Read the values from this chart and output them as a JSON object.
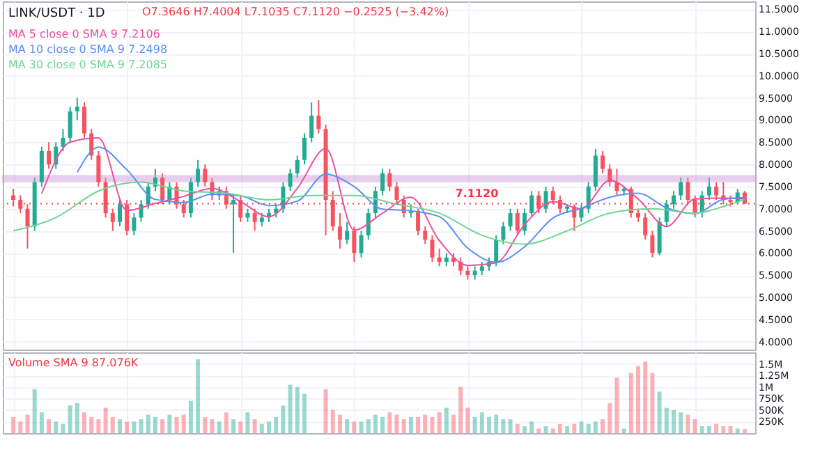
{
  "chart_data": [
    {
      "type": "candlestick",
      "title": "LINK/USDT · 1D",
      "annotations": [
        "O7.3646 H7.4004 L7.1035 C7.1120 −0.2525 (−3.42%)"
      ],
      "categories": [
        null,
        null,
        null,
        null,
        null,
        null,
        null,
        null,
        null,
        null,
        null,
        null,
        null,
        null,
        null,
        null,
        null,
        null,
        null,
        null,
        null,
        null,
        null,
        null,
        null,
        null,
        null,
        null,
        null,
        null,
        null,
        null,
        null,
        null,
        null,
        null,
        null,
        null,
        null,
        null,
        null,
        null,
        null,
        null,
        null,
        null,
        null,
        null,
        null,
        null,
        null,
        null,
        null,
        null,
        null,
        null,
        null,
        null,
        null,
        null,
        null,
        null,
        null,
        null,
        null,
        null,
        null,
        null,
        null,
        null,
        null,
        null,
        null,
        null,
        null,
        null,
        null,
        null,
        null,
        null,
        null,
        null,
        null,
        null,
        null,
        null,
        null,
        null,
        null,
        null,
        null,
        null,
        null,
        null,
        null,
        null,
        null,
        null,
        null,
        null,
        null,
        null,
        null,
        null
      ],
      "ohlc": [
        [
          7.3,
          7.45,
          7.05,
          7.2
        ],
        [
          7.2,
          7.3,
          6.9,
          7.0
        ],
        [
          7.0,
          7.1,
          6.1,
          6.6
        ],
        [
          6.6,
          7.7,
          6.5,
          7.6
        ],
        [
          7.6,
          8.4,
          7.5,
          8.3
        ],
        [
          8.3,
          8.5,
          7.9,
          8.0
        ],
        [
          8.0,
          8.5,
          7.9,
          8.4
        ],
        [
          8.4,
          8.8,
          8.3,
          8.6
        ],
        [
          8.6,
          9.3,
          8.5,
          9.2
        ],
        [
          9.2,
          9.5,
          9.0,
          9.3
        ],
        [
          9.3,
          9.4,
          8.6,
          8.7
        ],
        [
          8.7,
          8.8,
          8.1,
          8.2
        ],
        [
          8.2,
          8.3,
          7.5,
          7.6
        ],
        [
          7.6,
          7.7,
          6.8,
          6.9
        ],
        [
          6.9,
          7.0,
          6.5,
          6.7
        ],
        [
          6.7,
          7.2,
          6.6,
          7.1
        ],
        [
          7.1,
          7.2,
          6.4,
          6.5
        ],
        [
          6.5,
          6.9,
          6.4,
          6.8
        ],
        [
          6.8,
          7.2,
          6.7,
          7.1
        ],
        [
          7.1,
          7.6,
          7.0,
          7.5
        ],
        [
          7.5,
          7.9,
          7.4,
          7.7
        ],
        [
          7.7,
          7.8,
          7.1,
          7.2
        ],
        [
          7.2,
          7.6,
          7.1,
          7.5
        ],
        [
          7.5,
          7.6,
          7.0,
          7.1
        ],
        [
          7.1,
          7.2,
          6.8,
          6.9
        ],
        [
          6.9,
          7.7,
          6.8,
          7.6
        ],
        [
          7.6,
          8.1,
          7.5,
          7.9
        ],
        [
          7.9,
          8.0,
          7.5,
          7.6
        ],
        [
          7.6,
          7.7,
          7.2,
          7.3
        ],
        [
          7.3,
          7.5,
          7.2,
          7.4
        ],
        [
          7.4,
          7.5,
          7.0,
          7.1
        ],
        [
          7.1,
          7.3,
          6.0,
          7.2
        ],
        [
          7.2,
          7.3,
          6.7,
          6.8
        ],
        [
          6.8,
          7.0,
          6.7,
          6.9
        ],
        [
          6.9,
          7.0,
          6.5,
          6.7
        ],
        [
          6.7,
          6.9,
          6.6,
          6.8
        ],
        [
          6.8,
          7.0,
          6.7,
          6.9
        ],
        [
          6.9,
          7.1,
          6.8,
          7.0
        ],
        [
          7.0,
          7.6,
          6.9,
          7.5
        ],
        [
          7.5,
          7.9,
          7.4,
          7.8
        ],
        [
          7.8,
          8.2,
          7.7,
          8.1
        ],
        [
          8.1,
          8.7,
          8.0,
          8.6
        ],
        [
          8.6,
          9.4,
          8.5,
          9.1
        ],
        [
          9.1,
          9.45,
          8.7,
          8.8
        ],
        [
          8.8,
          8.9,
          6.4,
          7.2
        ],
        [
          7.2,
          7.4,
          6.5,
          6.6
        ],
        [
          6.6,
          6.9,
          6.1,
          6.3
        ],
        [
          6.3,
          6.7,
          6.2,
          6.5
        ],
        [
          6.5,
          6.6,
          5.8,
          6.0
        ],
        [
          6.0,
          6.5,
          5.9,
          6.4
        ],
        [
          6.4,
          7.0,
          6.3,
          6.9
        ],
        [
          6.9,
          7.5,
          6.8,
          7.4
        ],
        [
          7.4,
          7.9,
          7.3,
          7.8
        ],
        [
          7.8,
          7.9,
          7.4,
          7.5
        ],
        [
          7.5,
          7.6,
          7.1,
          7.2
        ],
        [
          7.2,
          7.3,
          6.8,
          6.9
        ],
        [
          6.9,
          7.1,
          6.8,
          6.95
        ],
        [
          6.95,
          7.0,
          6.4,
          6.5
        ],
        [
          6.5,
          6.6,
          6.2,
          6.3
        ],
        [
          6.3,
          6.4,
          5.8,
          5.9
        ],
        [
          5.9,
          6.1,
          5.7,
          5.8
        ],
        [
          5.8,
          6.0,
          5.7,
          5.9
        ],
        [
          5.9,
          6.0,
          5.7,
          5.8
        ],
        [
          5.8,
          5.9,
          5.5,
          5.6
        ],
        [
          5.6,
          5.7,
          5.4,
          5.5
        ],
        [
          5.5,
          5.7,
          5.4,
          5.6
        ],
        [
          5.6,
          5.8,
          5.5,
          5.7
        ],
        [
          5.7,
          5.9,
          5.6,
          5.8
        ],
        [
          5.8,
          6.4,
          5.7,
          6.3
        ],
        [
          6.3,
          6.7,
          6.2,
          6.6
        ],
        [
          6.6,
          7.0,
          6.5,
          6.9
        ],
        [
          6.9,
          7.0,
          6.4,
          6.5
        ],
        [
          6.5,
          7.0,
          6.4,
          6.9
        ],
        [
          6.9,
          7.4,
          6.8,
          7.3
        ],
        [
          7.3,
          7.4,
          6.9,
          7.0
        ],
        [
          7.0,
          7.5,
          6.9,
          7.4
        ],
        [
          7.4,
          7.5,
          7.1,
          7.2
        ],
        [
          7.2,
          7.3,
          6.9,
          7.0
        ],
        [
          7.0,
          7.1,
          6.9,
          7.05
        ],
        [
          7.05,
          7.1,
          6.5,
          6.8
        ],
        [
          6.8,
          7.1,
          6.7,
          7.0
        ],
        [
          7.0,
          7.6,
          6.9,
          7.5
        ],
        [
          7.5,
          8.35,
          7.4,
          8.2
        ],
        [
          8.2,
          8.3,
          7.8,
          7.9
        ],
        [
          7.9,
          8.0,
          7.5,
          7.6
        ],
        [
          7.6,
          7.9,
          7.3,
          7.4
        ],
        [
          7.4,
          7.5,
          7.3,
          7.45
        ],
        [
          7.45,
          7.5,
          6.8,
          6.9
        ],
        [
          6.9,
          7.0,
          6.7,
          6.8
        ],
        [
          6.8,
          6.9,
          6.3,
          6.4
        ],
        [
          6.4,
          6.5,
          5.9,
          6.0
        ],
        [
          6.0,
          6.8,
          5.95,
          6.7
        ],
        [
          6.7,
          7.2,
          6.6,
          7.1
        ],
        [
          7.1,
          7.4,
          7.0,
          7.3
        ],
        [
          7.3,
          7.7,
          7.2,
          7.6
        ],
        [
          7.6,
          7.7,
          7.1,
          7.2
        ],
        [
          7.2,
          7.3,
          6.8,
          6.9
        ],
        [
          6.9,
          7.4,
          6.8,
          7.3
        ],
        [
          7.3,
          7.7,
          7.2,
          7.5
        ],
        [
          7.5,
          7.6,
          7.2,
          7.3
        ],
        [
          7.3,
          7.6,
          7.1,
          7.2
        ],
        [
          7.2,
          7.3,
          7.05,
          7.15
        ],
        [
          7.15,
          7.45,
          7.1,
          7.3646
        ],
        [
          7.3646,
          7.4004,
          7.1035,
          7.112
        ]
      ],
      "colors": [
        "#f7525f",
        "#f7525f",
        "#f7525f",
        "#22ab94",
        "#22ab94",
        "#f7525f",
        "#22ab94",
        "#22ab94",
        "#22ab94",
        "#22ab94",
        "#f7525f",
        "#f7525f",
        "#f7525f",
        "#f7525f",
        "#f7525f",
        "#22ab94",
        "#f7525f",
        "#22ab94",
        "#22ab94",
        "#22ab94",
        "#22ab94",
        "#f7525f",
        "#22ab94",
        "#f7525f",
        "#f7525f",
        "#22ab94",
        "#22ab94",
        "#f7525f",
        "#f7525f",
        "#22ab94",
        "#f7525f",
        "#22ab94",
        "#f7525f",
        "#22ab94",
        "#f7525f",
        "#22ab94",
        "#22ab94",
        "#22ab94",
        "#22ab94",
        "#22ab94",
        "#22ab94",
        "#22ab94",
        "#22ab94",
        "#f7525f",
        "#f7525f",
        "#f7525f",
        "#f7525f",
        "#22ab94",
        "#f7525f",
        "#22ab94",
        "#22ab94",
        "#22ab94",
        "#22ab94",
        "#f7525f",
        "#f7525f",
        "#f7525f",
        "#22ab94",
        "#f7525f",
        "#f7525f",
        "#f7525f",
        "#f7525f",
        "#22ab94",
        "#f7525f",
        "#f7525f",
        "#f7525f",
        "#22ab94",
        "#22ab94",
        "#22ab94",
        "#22ab94",
        "#22ab94",
        "#22ab94",
        "#f7525f",
        "#22ab94",
        "#22ab94",
        "#f7525f",
        "#22ab94",
        "#f7525f",
        "#f7525f",
        "#22ab94",
        "#f7525f",
        "#22ab94",
        "#22ab94",
        "#22ab94",
        "#f7525f",
        "#f7525f",
        "#f7525f",
        "#22ab94",
        "#f7525f",
        "#f7525f",
        "#f7525f",
        "#f7525f",
        "#22ab94",
        "#22ab94",
        "#22ab94",
        "#22ab94",
        "#f7525f",
        "#f7525f",
        "#22ab94",
        "#22ab94",
        "#f7525f",
        "#f7525f",
        "#f7525f",
        "#22ab94",
        "#f7525f"
      ],
      "series": [
        {
          "name": "MA 5 close 0 SMA 9 7.2106",
          "type": "line",
          "color": "#ec4fa0",
          "values": [
            null,
            null,
            null,
            null,
            7.34,
            null,
            null,
            null,
            8.5,
            null,
            null,
            null,
            8.6,
            null,
            null,
            null,
            6.96,
            null,
            null,
            null,
            7.12,
            null,
            null,
            null,
            7.28,
            null,
            null,
            null,
            7.46,
            null,
            null,
            null,
            7.16,
            null,
            null,
            null,
            6.82,
            null,
            null,
            null,
            7.46,
            null,
            null,
            null,
            8.36,
            null,
            null,
            null,
            6.52,
            null,
            null,
            null,
            6.9,
            null,
            null,
            null,
            7.26,
            null,
            null,
            null,
            6.28,
            null,
            null,
            null,
            5.72,
            null,
            null,
            null,
            5.78,
            null,
            null,
            null,
            6.64,
            null,
            null,
            null,
            7.16,
            null,
            null,
            null,
            7.0,
            null,
            null,
            null,
            7.64,
            null,
            null,
            null,
            7.22,
            null,
            null,
            null,
            6.6,
            null,
            null,
            null,
            7.22,
            null,
            null,
            null,
            7.24,
            null,
            null,
            7.22
          ]
        },
        {
          "name": "MA 10 close 0 SMA 9 7.2498",
          "type": "line",
          "color": "#5b8ff9",
          "values": [
            null,
            null,
            null,
            null,
            null,
            null,
            null,
            null,
            null,
            7.82,
            null,
            null,
            8.39,
            null,
            null,
            null,
            7.88,
            null,
            null,
            null,
            7.21,
            null,
            null,
            null,
            7.14,
            null,
            null,
            null,
            7.33,
            null,
            null,
            null,
            7.29,
            null,
            null,
            null,
            7.07,
            null,
            null,
            null,
            7.17,
            null,
            null,
            null,
            7.78,
            null,
            null,
            null,
            7.5,
            null,
            null,
            null,
            6.99,
            null,
            null,
            null,
            6.95,
            null,
            null,
            null,
            6.82,
            null,
            null,
            null,
            6.11,
            null,
            null,
            null,
            5.79,
            null,
            null,
            null,
            6.14,
            null,
            null,
            null,
            6.79,
            null,
            null,
            null,
            7.01,
            null,
            null,
            null,
            7.26,
            null,
            null,
            null,
            7.35,
            null,
            null,
            null,
            7.02,
            null,
            null,
            null,
            6.89,
            null,
            null,
            null,
            7.21,
            null,
            null,
            7.25
          ]
        },
        {
          "name": "MA 30 close 0 SMA 9 7.2085",
          "type": "line",
          "color": "#6fd692",
          "values": [
            6.5,
            null,
            null,
            null,
            null,
            null,
            6.8,
            null,
            null,
            null,
            null,
            null,
            7.4,
            null,
            null,
            null,
            null,
            null,
            7.6,
            null,
            null,
            null,
            null,
            null,
            7.4,
            null,
            null,
            null,
            null,
            null,
            7.35,
            null,
            null,
            null,
            null,
            null,
            7.2,
            null,
            null,
            null,
            null,
            null,
            7.3,
            null,
            null,
            null,
            null,
            null,
            7.3,
            null,
            null,
            null,
            null,
            null,
            7.1,
            null,
            null,
            null,
            null,
            null,
            6.9,
            null,
            null,
            null,
            null,
            null,
            6.4,
            null,
            null,
            null,
            null,
            null,
            6.2,
            null,
            null,
            null,
            null,
            null,
            6.5,
            null,
            null,
            null,
            null,
            null,
            6.9,
            null,
            null,
            null,
            null,
            null,
            7.0,
            null,
            null,
            null,
            null,
            null,
            6.9,
            null,
            null,
            null,
            7.05,
            null,
            null,
            7.21
          ]
        }
      ],
      "ylim": [
        3.82,
        11.68
      ],
      "yticks": [
        {
          "value": 4,
          "label": "4.0000"
        },
        {
          "value": 4.5,
          "label": "4.5000"
        },
        {
          "value": 5,
          "label": "5.0000"
        },
        {
          "value": 5.5,
          "label": "5.5000"
        },
        {
          "value": 6,
          "label": "6.0000"
        },
        {
          "value": 6.5,
          "label": "6.5000"
        },
        {
          "value": 7,
          "label": "7.0000"
        },
        {
          "value": 7.5,
          "label": "7.5000"
        },
        {
          "value": 8,
          "label": "8.0000"
        },
        {
          "value": 8.5,
          "label": "8.5000"
        },
        {
          "value": 9,
          "label": "9.0000"
        },
        {
          "value": 9.5,
          "label": "9.5000"
        },
        {
          "value": 10,
          "label": "10.0000"
        },
        {
          "value": 10.5,
          "label": "10.5000"
        },
        {
          "value": 11,
          "label": "11.0000"
        },
        {
          "value": 11.5,
          "label": "11.5000"
        }
      ],
      "grid": true,
      "legend": "top left",
      "tick_labels": "y",
      "ref_lines": [
        {
          "axis": "y",
          "value": 7.112,
          "label": "7.1120",
          "color": "#f23645",
          "line_style": "dotted"
        }
      ],
      "bands": [
        {
          "axis": "y",
          "from": 7.62,
          "to": 7.74,
          "color": "#ce93d8"
        }
      ]
    },
    {
      "type": "bar",
      "annotations": [
        "Volume SMA 9 87.076K"
      ],
      "categories": [
        null,
        null,
        null,
        null,
        null,
        null,
        null,
        null,
        null,
        null,
        null,
        null,
        null,
        null,
        null,
        null,
        null,
        null,
        null,
        null,
        null,
        null,
        null,
        null,
        null,
        null,
        null,
        null,
        null,
        null,
        null,
        null,
        null,
        null,
        null,
        null,
        null,
        null,
        null,
        null,
        null,
        null,
        null,
        null,
        null,
        null,
        null,
        null,
        null,
        null,
        null,
        null,
        null,
        null,
        null,
        null,
        null,
        null,
        null,
        null,
        null,
        null,
        null,
        null,
        null,
        null,
        null,
        null,
        null,
        null,
        null,
        null,
        null,
        null,
        null,
        null,
        null,
        null,
        null,
        null,
        null,
        null,
        null,
        null,
        null,
        null,
        null,
        null,
        null,
        null,
        null,
        null,
        null,
        null,
        null,
        null,
        null,
        null,
        null,
        null,
        null,
        null,
        null,
        null
      ],
      "values": [
        350000,
        250000,
        400000,
        950000,
        450000,
        300000,
        250000,
        200000,
        600000,
        650000,
        450000,
        350000,
        300000,
        550000,
        350000,
        300000,
        250000,
        250000,
        300000,
        400000,
        350000,
        300000,
        400000,
        350000,
        400000,
        700000,
        1600000,
        350000,
        300000,
        250000,
        450000,
        300000,
        250000,
        450000,
        300000,
        200000,
        250000,
        350000,
        600000,
        1050000,
        1000000,
        850000,
        null,
        null,
        950000,
        500000,
        400000,
        300000,
        250000,
        250000,
        300000,
        400000,
        350000,
        450000,
        400000,
        300000,
        350000,
        350000,
        400000,
        350000,
        450000,
        550000,
        400000,
        1000000,
        550000,
        350000,
        450000,
        350000,
        400000,
        300000,
        300000,
        200000,
        150000,
        250000,
        100000,
        150000,
        100000,
        200000,
        150000,
        200000,
        250000,
        200000,
        250000,
        300000,
        650000,
        1200000,
        100000,
        1300000,
        1450000,
        1550000,
        1300000,
        900000,
        550000,
        500000,
        450000,
        400000,
        300000,
        150000,
        150000,
        200000,
        150000,
        150000,
        100000,
        90000
      ],
      "colors": [
        "#f7525f",
        "#f7525f",
        "#f7525f",
        "#22ab94",
        "#22ab94",
        "#f7525f",
        "#22ab94",
        "#22ab94",
        "#22ab94",
        "#22ab94",
        "#f7525f",
        "#f7525f",
        "#f7525f",
        "#f7525f",
        "#f7525f",
        "#22ab94",
        "#f7525f",
        "#22ab94",
        "#22ab94",
        "#22ab94",
        "#22ab94",
        "#f7525f",
        "#22ab94",
        "#f7525f",
        "#f7525f",
        "#22ab94",
        "#22ab94",
        "#f7525f",
        "#f7525f",
        "#22ab94",
        "#f7525f",
        "#22ab94",
        "#f7525f",
        "#22ab94",
        "#f7525f",
        "#22ab94",
        "#22ab94",
        "#22ab94",
        "#22ab94",
        "#22ab94",
        "#22ab94",
        "#22ab94",
        "#22ab94",
        "#f7525f",
        "#f7525f",
        "#f7525f",
        "#f7525f",
        "#22ab94",
        "#f7525f",
        "#22ab94",
        "#22ab94",
        "#22ab94",
        "#22ab94",
        "#f7525f",
        "#f7525f",
        "#f7525f",
        "#22ab94",
        "#f7525f",
        "#f7525f",
        "#f7525f",
        "#f7525f",
        "#22ab94",
        "#f7525f",
        "#f7525f",
        "#f7525f",
        "#22ab94",
        "#22ab94",
        "#22ab94",
        "#22ab94",
        "#22ab94",
        "#22ab94",
        "#f7525f",
        "#22ab94",
        "#22ab94",
        "#f7525f",
        "#22ab94",
        "#f7525f",
        "#f7525f",
        "#22ab94",
        "#f7525f",
        "#22ab94",
        "#22ab94",
        "#22ab94",
        "#f7525f",
        "#f7525f",
        "#f7525f",
        "#22ab94",
        "#f7525f",
        "#f7525f",
        "#f7525f",
        "#f7525f",
        "#22ab94",
        "#22ab94",
        "#22ab94",
        "#22ab94",
        "#f7525f",
        "#f7525f",
        "#22ab94",
        "#22ab94",
        "#f7525f",
        "#f7525f",
        "#f7525f",
        "#22ab94",
        "#f7525f"
      ],
      "ylim": [
        0,
        1750000
      ],
      "yticks": [
        {
          "value": 250000,
          "label": "250K"
        },
        {
          "value": 500000,
          "label": "500K"
        },
        {
          "value": 750000,
          "label": "750K"
        },
        {
          "value": 1000000,
          "label": "1M"
        },
        {
          "value": 1250000,
          "label": "1.25M"
        },
        {
          "value": 1500000,
          "label": "1.5M"
        }
      ],
      "grid": true,
      "tick_labels": "y"
    }
  ]
}
